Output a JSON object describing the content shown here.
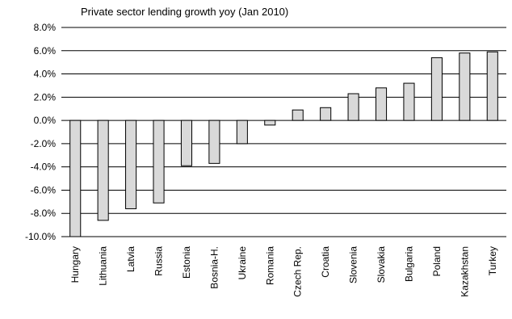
{
  "chart_data": {
    "type": "bar",
    "title": "Private sector lending growth yoy (Jan 2010)",
    "xlabel": "",
    "ylabel": "",
    "ylim": [
      -10,
      8
    ],
    "ytick_step": 2,
    "ytick_labels": [
      "8.0%",
      "6.0%",
      "4.0%",
      "2.0%",
      "0.0%",
      "-2.0%",
      "-4.0%",
      "-6.0%",
      "-8.0%",
      "-10.0%"
    ],
    "grid": true,
    "legend": "none",
    "categories": [
      "Hungary",
      "Lithuania",
      "Latvia",
      "Russia",
      "Estonia",
      "Bosnia-H.",
      "Ukraine",
      "Romania",
      "Czech Rep.",
      "Croatia",
      "Slovenia",
      "Slovakia",
      "Bulgaria",
      "Poland",
      "Kazakhstan",
      "Turkey"
    ],
    "values": [
      -10.0,
      -8.6,
      -7.6,
      -7.1,
      -3.9,
      -3.7,
      -2.0,
      -0.4,
      0.9,
      1.1,
      2.3,
      2.8,
      3.2,
      5.4,
      5.8,
      5.9
    ]
  },
  "colors": {
    "bar_fill": "#d9d9d9",
    "bar_stroke": "#000000",
    "grid": "#000000"
  }
}
